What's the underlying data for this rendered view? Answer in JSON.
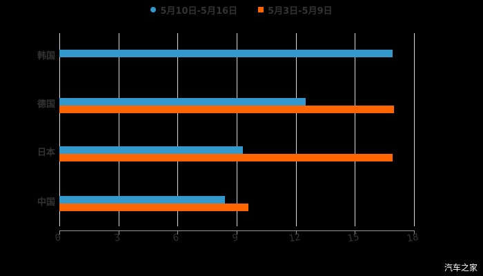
{
  "chart_data": {
    "type": "bar",
    "orientation": "horizontal",
    "title": "",
    "xlabel": "",
    "ylabel": "",
    "categories": [
      "韩国",
      "德国",
      "日本",
      "中国"
    ],
    "series": [
      {
        "name": "5月10日-5月16日",
        "color": "#3399CC",
        "values": [
          16.9,
          12.5,
          9.3,
          8.4
        ]
      },
      {
        "name": "5月3日-5月9日",
        "color": "#FF6600",
        "values": [
          null,
          17.0,
          16.9,
          9.6
        ]
      }
    ],
    "xlim": [
      0,
      18
    ],
    "xticks": [
      "0",
      "3",
      "6",
      "9",
      "12",
      "15",
      "18"
    ],
    "grid": true,
    "legend_position": "top"
  },
  "legend": {
    "items": [
      {
        "label": "5月10日-5月16日",
        "color": "#3399CC"
      },
      {
        "label": "5月3日-5月9日",
        "color": "#FF6600"
      }
    ]
  },
  "watermark": "汽车之家"
}
